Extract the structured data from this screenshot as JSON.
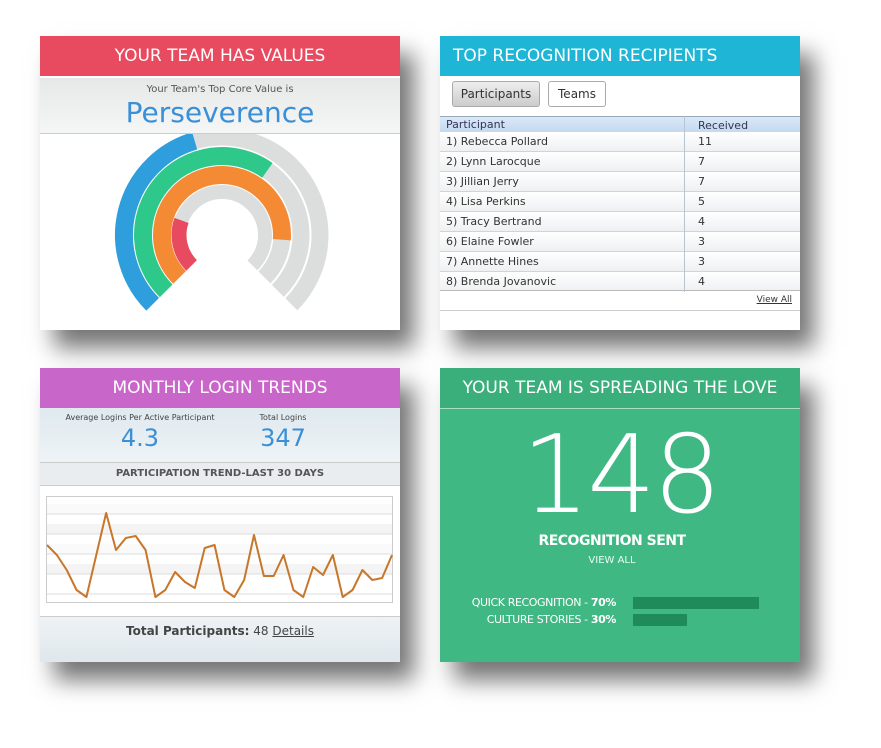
{
  "values_panel": {
    "title": "YOUR TEAM HAS VALUES",
    "subtitle": "Your Team's Top Core Value is",
    "top_value": "Perseverence",
    "chart": {
      "type": "radial_bar",
      "max": 100,
      "values": [
        44,
        63,
        85,
        24
      ],
      "colors": [
        "#2e9fdc",
        "#2ec98a",
        "#f58a35",
        "#e84a5f"
      ],
      "track_color": "#dcdedd"
    }
  },
  "recipients_panel": {
    "title": "TOP RECOGNITION RECIPIENTS",
    "tabs": [
      "Participants",
      "Teams"
    ],
    "table": {
      "columns": [
        "Participant",
        "Received"
      ],
      "rows": [
        [
          "1) Rebecca Pollard",
          "11"
        ],
        [
          "2) Lynn Larocque",
          "7"
        ],
        [
          "3) Jillian Jerry",
          "7"
        ],
        [
          "4) Lisa Perkins",
          "5"
        ],
        [
          "5) Tracy Bertrand",
          "4"
        ],
        [
          "6) Elaine Fowler",
          "3"
        ],
        [
          "7) Annette Hines",
          "3"
        ],
        [
          "8) Brenda Jovanovic",
          "4"
        ]
      ]
    },
    "link": "View All"
  },
  "login_panel": {
    "title": "MONTHLY LOGIN TRENDS",
    "stats": [
      {
        "label": "Average Logins Per Active Participant",
        "value": "4.3"
      },
      {
        "label": "Total Logins",
        "value": "347"
      }
    ],
    "trend_title": "PARTICIPATION TREND-LAST 30 DAYS",
    "chart": {
      "type": "line",
      "color": "#c8762a",
      "ylim": [
        0,
        100
      ],
      "values": [
        55,
        45,
        30,
        10,
        3,
        45,
        87,
        50,
        62,
        64,
        50,
        3,
        10,
        28,
        18,
        12,
        52,
        55,
        10,
        3,
        20,
        65,
        24,
        24,
        45,
        10,
        3,
        33,
        25,
        45,
        3,
        10,
        30,
        20,
        22,
        45
      ]
    },
    "footer_label": "Total Participants:",
    "footer_value": "48",
    "footer_link": "Details"
  },
  "love_panel": {
    "title": "YOUR TEAM IS SPREADING THE LOVE",
    "count": "148",
    "count_label": "RECOGNITION SENT",
    "link": "VIEW ALL",
    "bars": {
      "type": "bar",
      "xlim": [
        0,
        100
      ],
      "color": "#1f8a5a",
      "items": [
        {
          "label": "QUICK RECOGNITION - ",
          "value": 70,
          "value_label": "70%"
        },
        {
          "label": "CULTURE STORIES - ",
          "value": 30,
          "value_label": "30%"
        }
      ]
    }
  }
}
